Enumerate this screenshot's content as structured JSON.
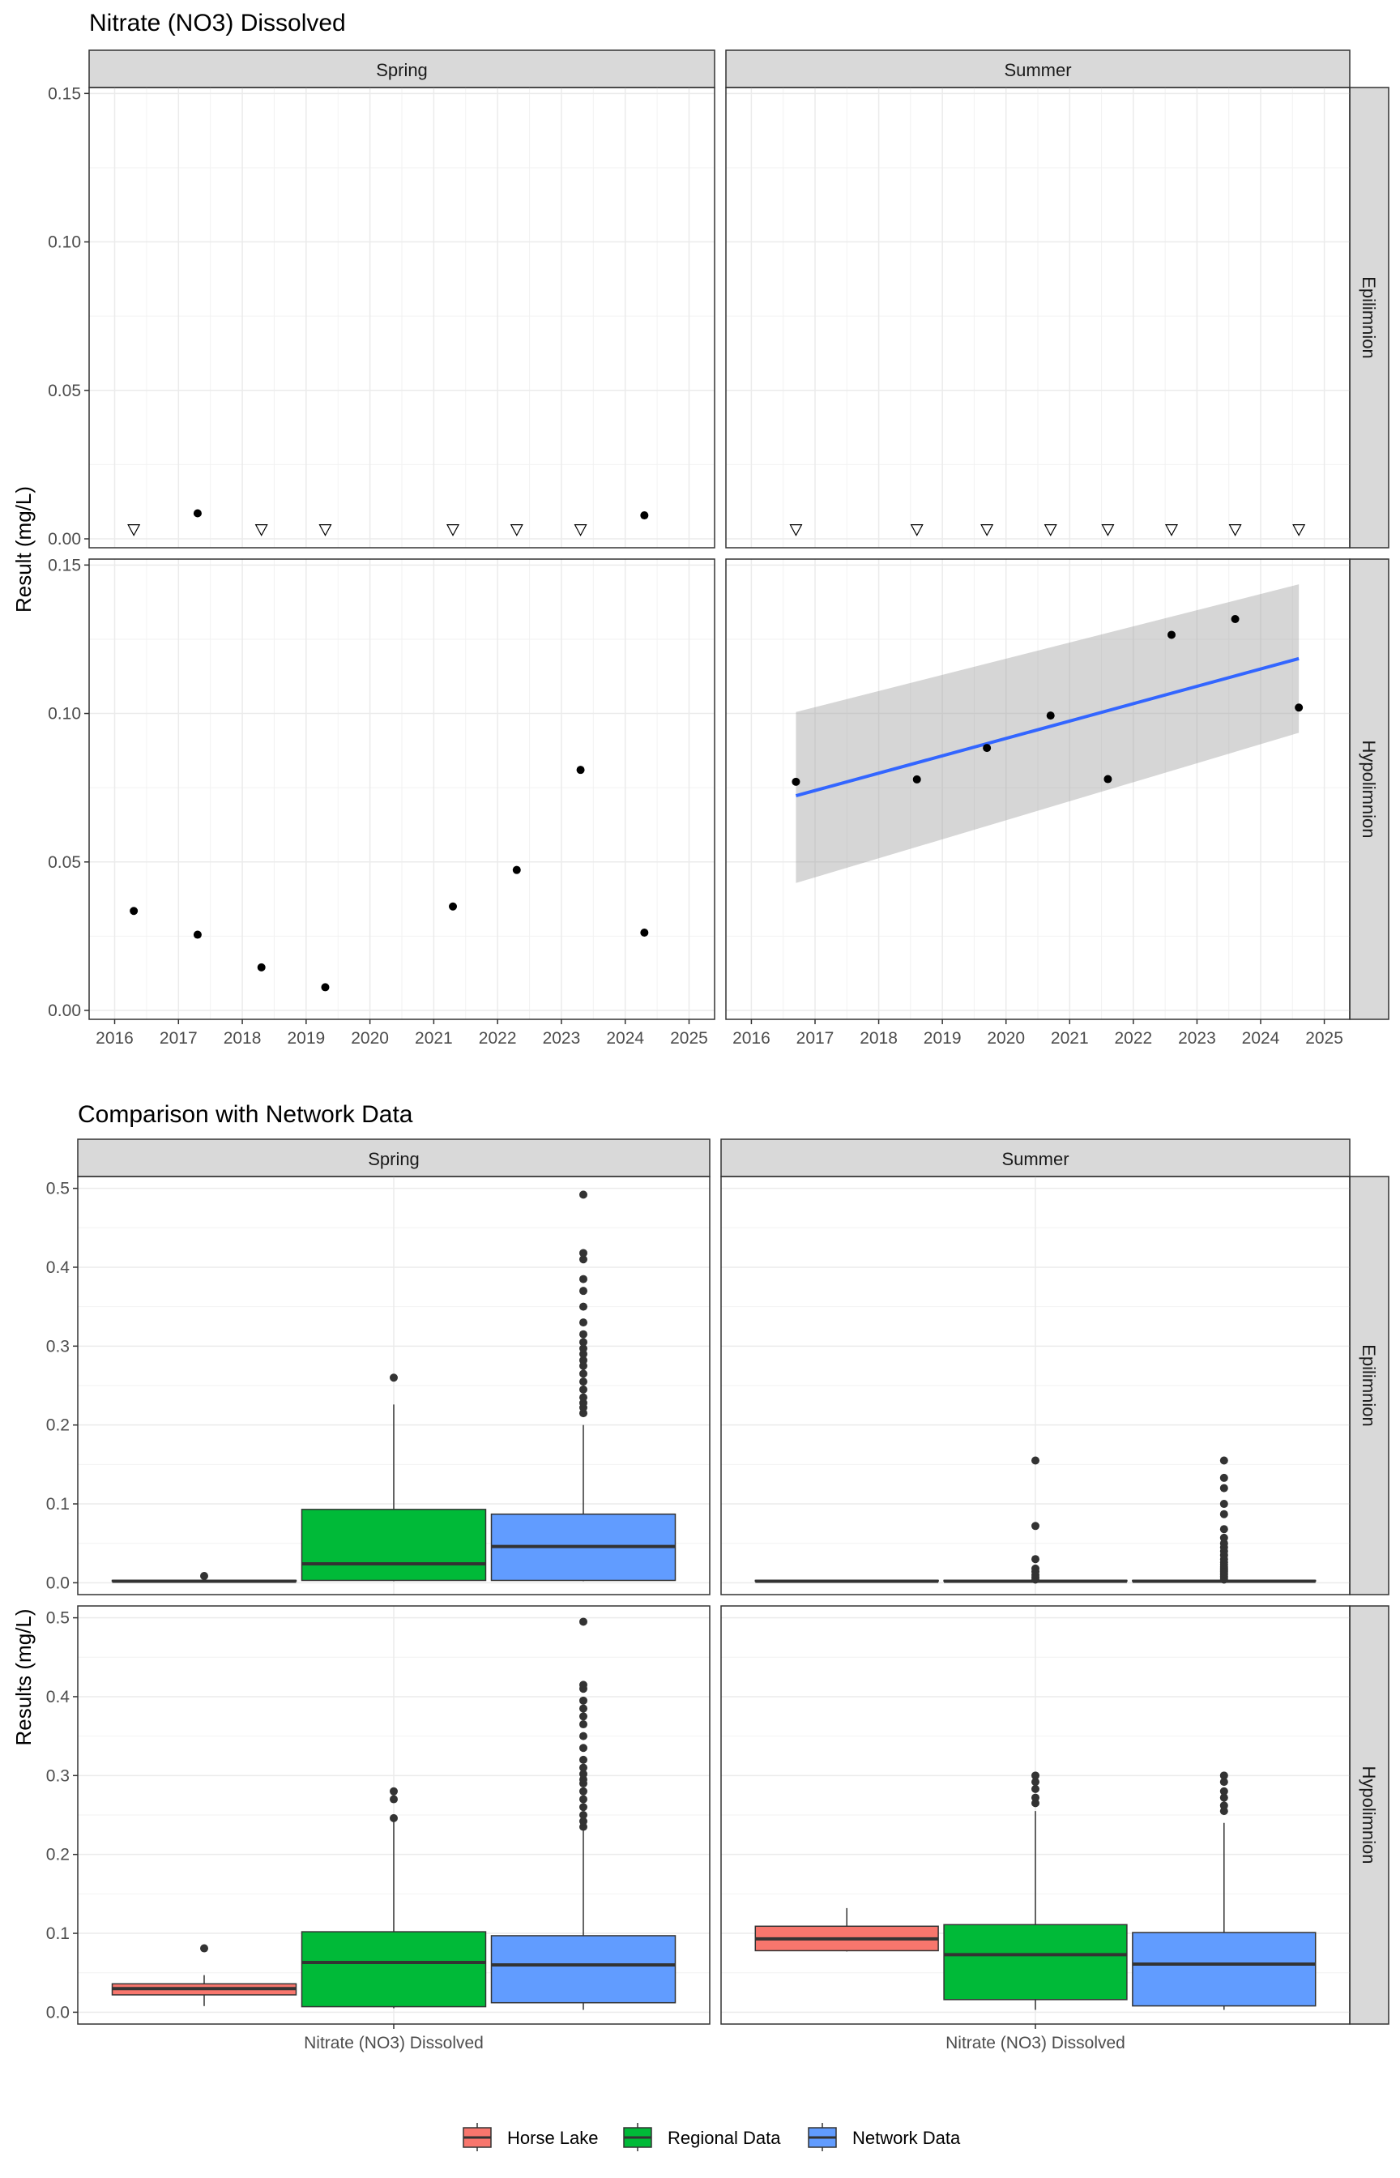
{
  "chart_data": [
    {
      "type": "scatter",
      "title": "Nitrate (NO3) Dissolved",
      "ylabel": "Result (mg/L)",
      "xlabel": "",
      "x_ticks": [
        2016,
        2017,
        2018,
        2019,
        2020,
        2021,
        2022,
        2023,
        2024,
        2025
      ],
      "xlim": [
        2015.6,
        2025.4
      ],
      "y_ticks": [
        "0.00",
        "0.05",
        "0.10",
        "0.15"
      ],
      "ylim": [
        -0.003,
        0.152
      ],
      "grid": true,
      "column_strips": [
        "Spring",
        "Summer"
      ],
      "row_strips": [
        "Epilimnion",
        "Hypolimnion"
      ],
      "panels": [
        {
          "column": "Spring",
          "row": "Epilimnion",
          "detected": [
            {
              "x": 2017.3,
              "y": 0.0086
            },
            {
              "x": 2024.3,
              "y": 0.0079
            }
          ],
          "below_detection": [
            2016.3,
            2018.3,
            2019.3,
            2021.3,
            2022.3,
            2023.3
          ]
        },
        {
          "column": "Summer",
          "row": "Epilimnion",
          "detected": [],
          "below_detection": [
            2016.7,
            2018.6,
            2019.7,
            2020.7,
            2021.6,
            2022.6,
            2023.6,
            2024.6
          ]
        },
        {
          "column": "Spring",
          "row": "Hypolimnion",
          "detected": [
            {
              "x": 2016.3,
              "y": 0.0335
            },
            {
              "x": 2017.3,
              "y": 0.0255
            },
            {
              "x": 2018.3,
              "y": 0.0145
            },
            {
              "x": 2019.3,
              "y": 0.0078
            },
            {
              "x": 2021.3,
              "y": 0.035
            },
            {
              "x": 2022.3,
              "y": 0.0473
            },
            {
              "x": 2023.3,
              "y": 0.081
            },
            {
              "x": 2024.3,
              "y": 0.0262
            }
          ],
          "below_detection": []
        },
        {
          "column": "Summer",
          "row": "Hypolimnion",
          "detected": [
            {
              "x": 2016.7,
              "y": 0.077
            },
            {
              "x": 2018.6,
              "y": 0.0778
            },
            {
              "x": 2019.7,
              "y": 0.0884
            },
            {
              "x": 2020.7,
              "y": 0.0993
            },
            {
              "x": 2021.6,
              "y": 0.0779
            },
            {
              "x": 2022.6,
              "y": 0.1265
            },
            {
              "x": 2023.6,
              "y": 0.1318
            },
            {
              "x": 2024.6,
              "y": 0.102
            }
          ],
          "below_detection": [],
          "trend": {
            "x": [
              2016.7,
              2024.6
            ],
            "y": [
              0.0723,
              0.1185
            ],
            "ci_lower": [
              0.0429,
              0.0935
            ],
            "ci_upper": [
              0.1005,
              0.1435
            ],
            "color": "#3366FF"
          }
        }
      ]
    },
    {
      "type": "box",
      "title": "Comparison with Network Data",
      "ylabel": "Results (mg/L)",
      "xlabel": "",
      "x_category": "Nitrate (NO3) Dissolved",
      "y_ticks": [
        "0.0",
        "0.1",
        "0.2",
        "0.3",
        "0.4",
        "0.5"
      ],
      "ylim": [
        -0.015,
        0.515
      ],
      "grid": true,
      "column_strips": [
        "Spring",
        "Summer"
      ],
      "row_strips": [
        "Epilimnion",
        "Hypolimnion"
      ],
      "legend": {
        "position": "bottom",
        "items": [
          {
            "name": "Horse Lake",
            "color": "#F8766D"
          },
          {
            "name": "Regional Data",
            "color": "#00BA38"
          },
          {
            "name": "Network Data",
            "color": "#619CFF"
          }
        ]
      },
      "panels": [
        {
          "column": "Spring",
          "row": "Epilimnion",
          "boxes": [
            {
              "series": "Horse Lake",
              "min": 0.002,
              "q1": 0.002,
              "median": 0.002,
              "q3": 0.003,
              "max": 0.004,
              "outliers": [
                0.0086
              ]
            },
            {
              "series": "Regional Data",
              "min": 0.002,
              "q1": 0.003,
              "median": 0.024,
              "q3": 0.093,
              "max": 0.226,
              "outliers": [
                0.26
              ]
            },
            {
              "series": "Network Data",
              "min": 0.002,
              "q1": 0.003,
              "median": 0.046,
              "q3": 0.087,
              "max": 0.2,
              "outliers": [
                0.215,
                0.222,
                0.228,
                0.235,
                0.245,
                0.255,
                0.265,
                0.275,
                0.282,
                0.29,
                0.297,
                0.305,
                0.315,
                0.33,
                0.35,
                0.37,
                0.385,
                0.41,
                0.418,
                0.492
              ]
            }
          ]
        },
        {
          "column": "Summer",
          "row": "Epilimnion",
          "boxes": [
            {
              "series": "Horse Lake",
              "min": 0.002,
              "q1": 0.002,
              "median": 0.002,
              "q3": 0.003,
              "max": 0.003,
              "outliers": []
            },
            {
              "series": "Regional Data",
              "min": 0.002,
              "q1": 0.002,
              "median": 0.002,
              "q3": 0.003,
              "max": 0.003,
              "outliers": [
                0.004,
                0.007,
                0.01,
                0.014,
                0.018,
                0.03,
                0.072,
                0.155
              ]
            },
            {
              "series": "Network Data",
              "min": 0.002,
              "q1": 0.002,
              "median": 0.002,
              "q3": 0.003,
              "max": 0.003,
              "outliers": [
                0.004,
                0.006,
                0.008,
                0.01,
                0.012,
                0.014,
                0.016,
                0.018,
                0.02,
                0.023,
                0.026,
                0.03,
                0.035,
                0.04,
                0.045,
                0.05,
                0.057,
                0.068,
                0.087,
                0.1,
                0.12,
                0.133,
                0.155
              ]
            }
          ]
        },
        {
          "column": "Spring",
          "row": "Hypolimnion",
          "boxes": [
            {
              "series": "Horse Lake",
              "min": 0.0078,
              "q1": 0.022,
              "median": 0.03,
              "q3": 0.036,
              "max": 0.047,
              "outliers": [
                0.081
              ]
            },
            {
              "series": "Regional Data",
              "min": 0.005,
              "q1": 0.007,
              "median": 0.063,
              "q3": 0.102,
              "max": 0.244,
              "outliers": [
                0.246,
                0.27,
                0.28
              ]
            },
            {
              "series": "Network Data",
              "min": 0.003,
              "q1": 0.012,
              "median": 0.06,
              "q3": 0.097,
              "max": 0.23,
              "outliers": [
                0.235,
                0.242,
                0.25,
                0.26,
                0.27,
                0.28,
                0.29,
                0.295,
                0.302,
                0.31,
                0.32,
                0.335,
                0.35,
                0.365,
                0.375,
                0.385,
                0.395,
                0.41,
                0.415,
                0.495
              ]
            }
          ]
        },
        {
          "column": "Summer",
          "row": "Hypolimnion",
          "boxes": [
            {
              "series": "Horse Lake",
              "min": 0.077,
              "q1": 0.078,
              "median": 0.093,
              "q3": 0.109,
              "max": 0.132,
              "outliers": []
            },
            {
              "series": "Regional Data",
              "min": 0.003,
              "q1": 0.016,
              "median": 0.073,
              "q3": 0.111,
              "max": 0.255,
              "outliers": [
                0.265,
                0.272,
                0.283,
                0.292,
                0.3
              ]
            },
            {
              "series": "Network Data",
              "min": 0.003,
              "q1": 0.008,
              "median": 0.061,
              "q3": 0.101,
              "max": 0.24,
              "outliers": [
                0.255,
                0.262,
                0.272,
                0.28,
                0.292,
                0.3
              ]
            }
          ]
        }
      ]
    }
  ]
}
